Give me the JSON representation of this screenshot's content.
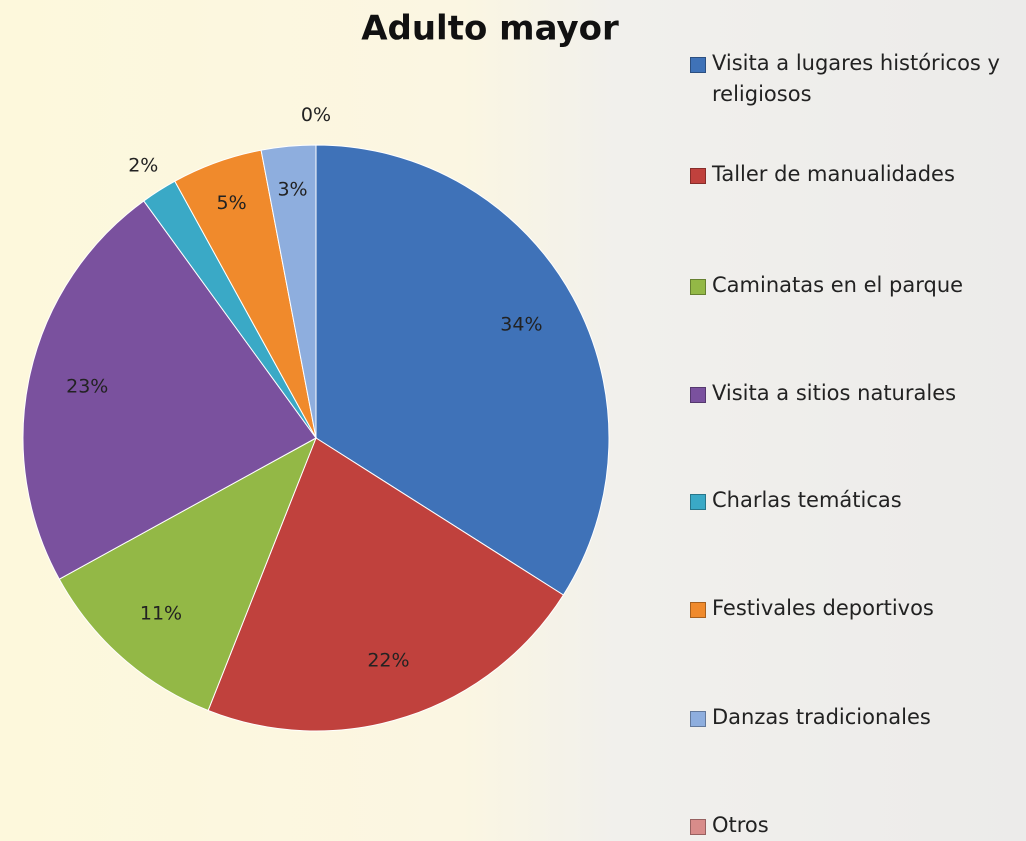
{
  "chart_data": {
    "type": "pie",
    "title": "Adulto mayor",
    "categories": [
      "Visita a lugares históricos y religiosos",
      "Taller de manualidades",
      "Caminatas en el parque",
      "Visita a sitios naturales",
      "Charlas temáticas",
      "Festivales deportivos",
      "Danzas tradicionales",
      "Otros"
    ],
    "values": [
      34,
      22,
      11,
      23,
      2,
      5,
      3,
      0
    ],
    "value_labels": [
      "34%",
      "22%",
      "11%",
      "23%",
      "2%",
      "5%",
      "3%",
      "0%"
    ],
    "colors": [
      "#3f72b8",
      "#c0413d",
      "#93b846",
      "#7a519e",
      "#3aa9c6",
      "#f08a2c",
      "#8eaede",
      "#d88c8a"
    ],
    "legend": "right"
  }
}
